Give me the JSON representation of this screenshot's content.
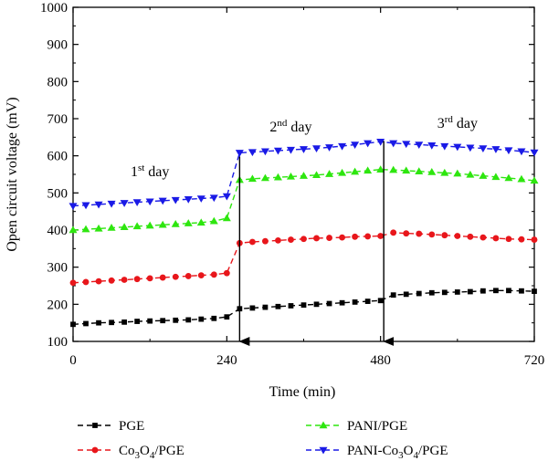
{
  "chart_data": {
    "type": "line",
    "xlabel": "Time (min)",
    "ylabel": "Open circuit voltage (mV)",
    "xlim": [
      0,
      720
    ],
    "ylim": [
      100,
      1000
    ],
    "xticks": [
      0,
      240,
      480,
      720
    ],
    "yticks": [
      100,
      200,
      300,
      400,
      500,
      600,
      700,
      800,
      900,
      1000
    ],
    "grid": false,
    "legend": "bottom",
    "annotations": [
      {
        "base": "1",
        "sup": "st",
        "rest": " day",
        "x": 120,
        "y": 545
      },
      {
        "base": "2",
        "sup": "nd",
        "rest": " day",
        "x": 340,
        "y": 665
      },
      {
        "base": "3",
        "sup": "rd",
        "rest": " day",
        "x": 600,
        "y": 675
      }
    ],
    "arrows": [
      {
        "x": 260,
        "from": 598,
        "to": 100
      },
      {
        "x": 485,
        "from": 640,
        "to": 100
      }
    ],
    "series": [
      {
        "name": "PGE",
        "name_parts": [
          "PGE"
        ],
        "color": "#000000",
        "marker": "square",
        "x": [
          0,
          20,
          40,
          60,
          80,
          100,
          120,
          140,
          160,
          180,
          200,
          220,
          240,
          260,
          280,
          300,
          320,
          340,
          360,
          380,
          400,
          420,
          440,
          460,
          480,
          500,
          520,
          540,
          560,
          580,
          600,
          620,
          640,
          660,
          680,
          700,
          720
        ],
        "y": [
          146,
          148,
          150,
          151,
          152,
          154,
          155,
          156,
          157,
          158,
          160,
          162,
          166,
          188,
          190,
          192,
          194,
          196,
          198,
          200,
          202,
          204,
          206,
          208,
          210,
          225,
          227,
          229,
          231,
          232,
          233,
          234,
          236,
          237,
          237,
          236,
          235
        ]
      },
      {
        "name": "Co3O4/PGE",
        "name_parts": [
          "Co",
          "3",
          "O",
          "4",
          "/PGE"
        ],
        "color": "#e8161b",
        "marker": "circle",
        "x": [
          0,
          20,
          40,
          60,
          80,
          100,
          120,
          140,
          160,
          180,
          200,
          220,
          240,
          260,
          280,
          300,
          320,
          340,
          360,
          380,
          400,
          420,
          440,
          460,
          480,
          500,
          520,
          540,
          560,
          580,
          600,
          620,
          640,
          660,
          680,
          700,
          720
        ],
        "y": [
          258,
          260,
          262,
          264,
          266,
          268,
          270,
          272,
          274,
          276,
          278,
          280,
          284,
          365,
          368,
          370,
          372,
          374,
          376,
          378,
          379,
          380,
          382,
          383,
          384,
          393,
          391,
          390,
          388,
          386,
          384,
          382,
          380,
          378,
          376,
          375,
          374
        ]
      },
      {
        "name": "PANI/PGE",
        "name_parts": [
          "PANI/PGE"
        ],
        "color": "#2ee60f",
        "marker": "triangle-up",
        "x": [
          0,
          20,
          40,
          60,
          80,
          100,
          120,
          140,
          160,
          180,
          200,
          220,
          240,
          260,
          280,
          300,
          320,
          340,
          360,
          380,
          400,
          420,
          440,
          460,
          480,
          500,
          520,
          540,
          560,
          580,
          600,
          620,
          640,
          660,
          680,
          700,
          720
        ],
        "y": [
          400,
          402,
          404,
          406,
          408,
          410,
          412,
          414,
          416,
          418,
          420,
          424,
          432,
          535,
          538,
          540,
          542,
          544,
          546,
          548,
          551,
          554,
          557,
          560,
          563,
          562,
          560,
          558,
          556,
          554,
          552,
          549,
          546,
          543,
          540,
          537,
          533
        ]
      },
      {
        "name": "PANI-Co3O4/PGE",
        "name_parts": [
          "PANI-Co",
          "3",
          "O",
          "4",
          "/PGE"
        ],
        "color": "#1a1ae6",
        "marker": "triangle-down",
        "x": [
          0,
          20,
          40,
          60,
          80,
          100,
          120,
          140,
          160,
          180,
          200,
          220,
          240,
          260,
          280,
          300,
          320,
          340,
          360,
          380,
          400,
          420,
          440,
          460,
          480,
          500,
          520,
          540,
          560,
          580,
          600,
          620,
          640,
          660,
          680,
          700,
          720
        ],
        "y": [
          465,
          467,
          469,
          471,
          473,
          475,
          477,
          479,
          481,
          483,
          485,
          487,
          491,
          608,
          610,
          612,
          614,
          616,
          618,
          620,
          623,
          626,
          630,
          634,
          638,
          634,
          632,
          630,
          628,
          626,
          624,
          622,
          620,
          618,
          615,
          612,
          609
        ]
      }
    ]
  }
}
